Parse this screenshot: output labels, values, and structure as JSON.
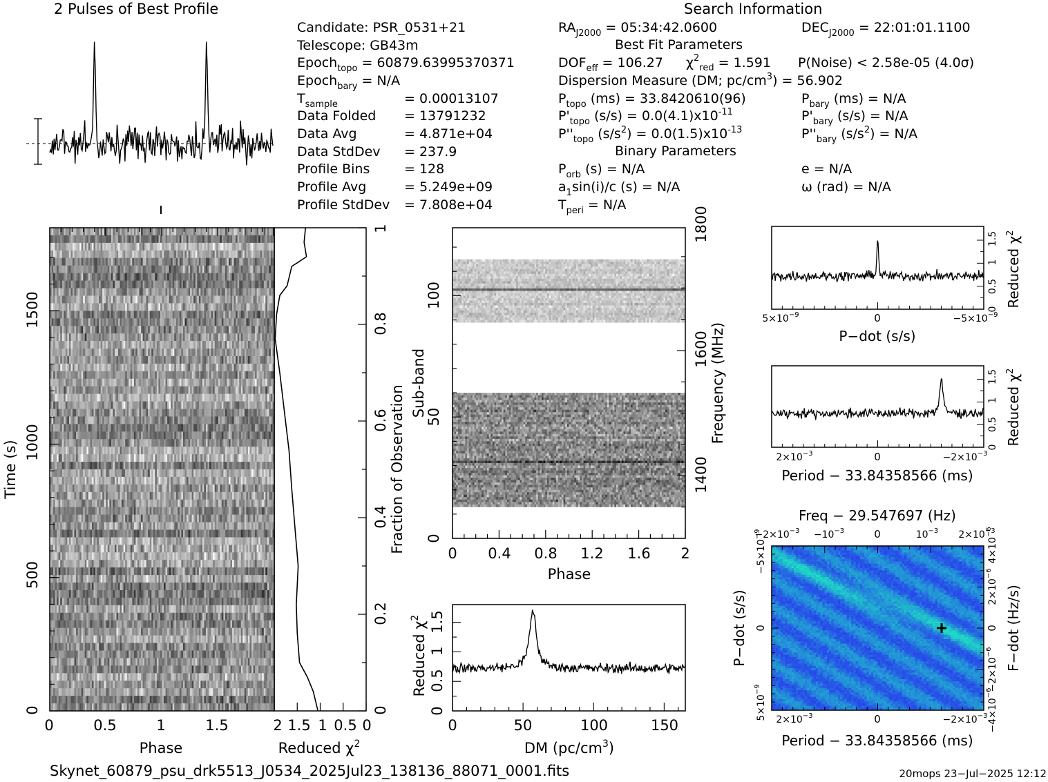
{
  "title_profile": "2 Pulses of Best Profile",
  "title_search": "Search Information",
  "info_left": [
    [
      "Candidate:  PSR_0531+21",
      ""
    ],
    [
      "Telescope:  GB43m",
      ""
    ],
    [
      "Epoch",
      "topo",
      "= 60879.63995370371"
    ],
    [
      "Epoch",
      "bary",
      "= N/A"
    ],
    [
      "T",
      "sample",
      "=   0.00013107"
    ],
    [
      "Data Folded",
      "",
      "=   13791232"
    ],
    [
      "Data Avg",
      "",
      "=   4.871e+04"
    ],
    [
      "Data StdDev",
      "",
      "=   237.9"
    ],
    [
      "Profile Bins",
      "",
      "=   128"
    ],
    [
      "Profile Avg",
      "",
      "=   5.249e+09"
    ],
    [
      "Profile StdDev",
      "",
      "=   7.808e+04"
    ]
  ],
  "info": {
    "ra": "= 05:34:42.0600",
    "dec": "= 22:01:01.1100",
    "best_fit_header": "Best Fit Parameters",
    "dof": "= 106.27",
    "chi2red": "= 1.591",
    "pnoise": "P(Noise) < 2.58e-05  (4.0σ)",
    "dm_line": "Dispersion Measure (DM; pc/cm",
    "dm_value": ") = 56.902",
    "ptopo": "(ms) =  33.8420610(96)",
    "pbary": "(ms) = N/A",
    "pdtopo": "(s/s) = 0.0(4.1)x10",
    "pdtopo_exp": "-11",
    "pdbary": "(s/s) = N/A",
    "pddtopo": "(s/s",
    "pddtopo_tail": ") = 0.0(1.5)x10",
    "pddtopo_exp": "-13",
    "pddbary": ") = N/A",
    "binary_header": "Binary Parameters",
    "porb": "(s) = N/A",
    "a1": "a",
    "a1_tail": "sin(i)/c (s) = N/A",
    "tperi": "= N/A",
    "ecc": "e = N/A",
    "omega": "ω (rad) = N/A"
  },
  "footer_file": "Skynet_60879_psu_drk5513_J0534_2025Jul23_138136_88071_0001.fits",
  "footer_stamp": "20mops 23−Jul−2025 12:12",
  "colors": {
    "axis": "#000000",
    "heat_low": "#2a3cf0",
    "heat_high": "#20e0c0",
    "best_fit_marker": "#000000"
  },
  "chart_data": [
    {
      "type": "line",
      "title": "2 Pulses of Best Profile",
      "x": "phase 0-2",
      "pulse_phases": [
        0.4,
        1.4
      ],
      "note_values": "two narrow pulses per period"
    },
    {
      "type": "heatmap",
      "xlabel": "Phase",
      "ylabel": "Time (s)",
      "xlim": [
        0,
        2
      ],
      "ylim": [
        0,
        1800
      ],
      "xticks": [
        "0",
        "0.5",
        "1",
        "1.5"
      ],
      "yticks": [
        "0",
        "500",
        "1000",
        "1500"
      ]
    },
    {
      "type": "line",
      "xlabel": "Reduced χ",
      "ylabel": "Fraction of Observation",
      "xlim": [
        2,
        0
      ],
      "ylim": [
        0,
        1
      ],
      "xticks": [
        "2",
        "1.5",
        "1",
        "0.5",
        "0"
      ],
      "yticks": [
        "0",
        "0.2",
        "0.4",
        "0.6",
        "0.8",
        "1"
      ]
    },
    {
      "type": "heatmap",
      "xlabel": "Phase",
      "ylabel": "Sub-band",
      "ylabel_right": "Frequency (MHz)",
      "xlim": [
        0,
        2
      ],
      "ylim": [
        0,
        128
      ],
      "xticks": [
        "0",
        "0.4",
        "0.8",
        "1.2",
        "1.6",
        "2"
      ],
      "yticks": [
        "0",
        "50",
        "100"
      ],
      "yticks_right": [
        "1400",
        "1600",
        "1800"
      ]
    },
    {
      "type": "line",
      "xlabel": "DM (pc/cm",
      "ylabel": "Reduced χ",
      "xlim": [
        0,
        165
      ],
      "ylim": [
        0,
        1.8
      ],
      "xticks": [
        "0",
        "50",
        "100",
        "150"
      ],
      "yticks": [
        "0",
        "0.5",
        "1",
        "1.5"
      ],
      "peak_x": 57,
      "peak_y": 1.72,
      "baseline": 0.72
    },
    {
      "type": "line",
      "xlabel": "P−dot (s/s)",
      "ylabel": "Reduced χ",
      "xticks": [
        "5×10",
        "0",
        "−5×10"
      ],
      "tick_exp": "−9",
      "yticks": [
        "0",
        "0.5",
        "1",
        "1.5"
      ],
      "peak_y": 1.6,
      "baseline": 0.72
    },
    {
      "type": "line",
      "xlabel": "Period − 33.84358566 (ms)",
      "ylabel": "Reduced χ",
      "xticks": [
        "2×10",
        "0",
        "−2×10"
      ],
      "tick_exp": "−3",
      "yticks": [
        "0",
        "0.5",
        "1",
        "1.5"
      ],
      "peak_y": 1.55,
      "baseline": 0.75
    },
    {
      "type": "heatmap",
      "title": "Freq − 29.547697 (Hz)",
      "xlabel": "Period − 33.84358566 (ms)",
      "ylabel": "P−dot (s/s)",
      "ylabel_right": "F−dot (Hz/s)",
      "top_ticks": [
        "−2×10",
        "−10",
        "0",
        "10",
        "2×10"
      ],
      "top_exp": "−3",
      "bottom_ticks": [
        "2×10",
        "0",
        "−2×10"
      ],
      "left_ticks": [
        "−5×10",
        "0",
        "5×10"
      ],
      "left_exp": "−9",
      "right_ticks": [
        "4×10",
        "2×10",
        "0",
        "−2×10",
        "−4×10"
      ],
      "right_exp": "−6"
    }
  ]
}
